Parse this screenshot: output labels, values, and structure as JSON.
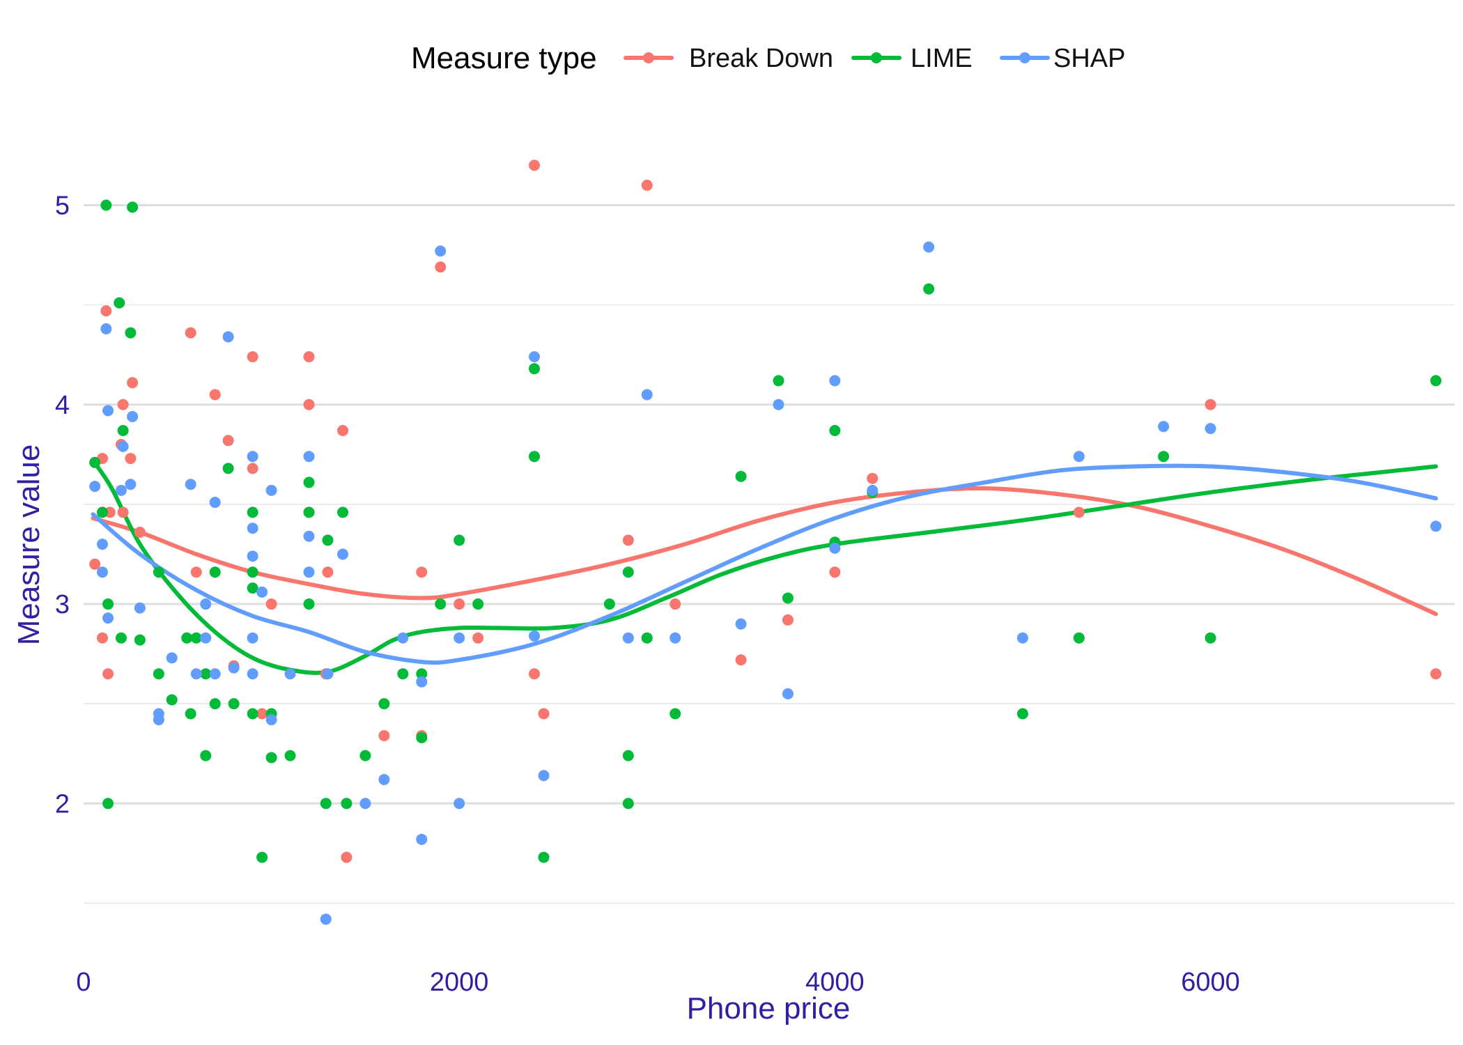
{
  "chart_data": {
    "type": "scatter",
    "title": "",
    "xlabel": "Phone price",
    "ylabel": "Measure value",
    "xlim": [
      0,
      7300
    ],
    "ylim": [
      1.25,
      5.4
    ],
    "x_ticks": [
      0,
      2000,
      4000,
      6000
    ],
    "y_ticks": [
      2,
      3,
      4,
      5
    ],
    "x_tick_labels": [
      "0",
      "2000",
      "4000",
      "6000"
    ],
    "y_tick_labels": [
      "2",
      "3",
      "4",
      "5"
    ],
    "minor_grid_y": [
      1.5,
      2.5,
      3.5,
      4.5
    ],
    "grid": true,
    "legend": {
      "title": "Measure type",
      "position": "top"
    },
    "series": [
      {
        "name": "Break Down",
        "color": "#f8766d",
        "points": [
          [
            60,
            3.2
          ],
          [
            100,
            3.73
          ],
          [
            100,
            2.83
          ],
          [
            120,
            4.47
          ],
          [
            130,
            2.65
          ],
          [
            140,
            3.46
          ],
          [
            200,
            3.8
          ],
          [
            210,
            4.0
          ],
          [
            210,
            3.46
          ],
          [
            250,
            3.73
          ],
          [
            260,
            4.11
          ],
          [
            300,
            3.36
          ],
          [
            570,
            4.36
          ],
          [
            600,
            3.16
          ],
          [
            700,
            4.05
          ],
          [
            770,
            3.82
          ],
          [
            800,
            2.69
          ],
          [
            900,
            4.24
          ],
          [
            900,
            3.68
          ],
          [
            950,
            2.45
          ],
          [
            1000,
            3.0
          ],
          [
            1200,
            4.24
          ],
          [
            1200,
            4.0
          ],
          [
            1290,
            2.65
          ],
          [
            1300,
            3.16
          ],
          [
            1380,
            3.87
          ],
          [
            1400,
            1.73
          ],
          [
            1600,
            2.34
          ],
          [
            1800,
            2.34
          ],
          [
            1800,
            3.16
          ],
          [
            1900,
            4.69
          ],
          [
            2000,
            3.0
          ],
          [
            2100,
            2.83
          ],
          [
            2400,
            5.2
          ],
          [
            2400,
            2.65
          ],
          [
            2450,
            2.45
          ],
          [
            2900,
            3.32
          ],
          [
            3000,
            5.1
          ],
          [
            3150,
            3.0
          ],
          [
            3500,
            2.72
          ],
          [
            3750,
            2.92
          ],
          [
            4000,
            3.16
          ],
          [
            4200,
            3.63
          ],
          [
            5300,
            3.46
          ],
          [
            6000,
            4.0
          ],
          [
            7200,
            2.65
          ]
        ],
        "smooth": [
          [
            50,
            3.43
          ],
          [
            300,
            3.36
          ],
          [
            600,
            3.25
          ],
          [
            900,
            3.16
          ],
          [
            1200,
            3.1
          ],
          [
            1500,
            3.05
          ],
          [
            1800,
            3.03
          ],
          [
            2000,
            3.05
          ],
          [
            2400,
            3.12
          ],
          [
            2800,
            3.2
          ],
          [
            3200,
            3.3
          ],
          [
            3600,
            3.42
          ],
          [
            4000,
            3.51
          ],
          [
            4400,
            3.56
          ],
          [
            4800,
            3.58
          ],
          [
            5200,
            3.55
          ],
          [
            5600,
            3.49
          ],
          [
            6000,
            3.39
          ],
          [
            6400,
            3.27
          ],
          [
            6800,
            3.12
          ],
          [
            7200,
            2.95
          ]
        ]
      },
      {
        "name": "LIME",
        "color": "#00ba38",
        "points": [
          [
            60,
            3.71
          ],
          [
            100,
            3.46
          ],
          [
            120,
            5.0
          ],
          [
            130,
            3.0
          ],
          [
            130,
            2.0
          ],
          [
            190,
            4.51
          ],
          [
            200,
            2.83
          ],
          [
            210,
            3.87
          ],
          [
            250,
            4.36
          ],
          [
            260,
            4.99
          ],
          [
            300,
            2.82
          ],
          [
            400,
            3.16
          ],
          [
            400,
            2.65
          ],
          [
            470,
            2.52
          ],
          [
            550,
            2.83
          ],
          [
            570,
            2.45
          ],
          [
            600,
            2.83
          ],
          [
            650,
            2.65
          ],
          [
            650,
            2.24
          ],
          [
            700,
            3.16
          ],
          [
            700,
            2.5
          ],
          [
            770,
            3.68
          ],
          [
            800,
            2.5
          ],
          [
            900,
            3.46
          ],
          [
            900,
            3.16
          ],
          [
            900,
            3.08
          ],
          [
            900,
            2.45
          ],
          [
            950,
            1.73
          ],
          [
            1000,
            2.45
          ],
          [
            1000,
            2.23
          ],
          [
            1100,
            2.24
          ],
          [
            1200,
            3.61
          ],
          [
            1200,
            3.46
          ],
          [
            1200,
            3.0
          ],
          [
            1290,
            2.0
          ],
          [
            1300,
            3.32
          ],
          [
            1380,
            3.46
          ],
          [
            1400,
            2.0
          ],
          [
            1500,
            2.24
          ],
          [
            1600,
            2.5
          ],
          [
            1700,
            2.65
          ],
          [
            1800,
            2.65
          ],
          [
            1800,
            2.33
          ],
          [
            1900,
            3.0
          ],
          [
            2000,
            3.32
          ],
          [
            2100,
            3.0
          ],
          [
            2400,
            4.18
          ],
          [
            2400,
            3.74
          ],
          [
            2450,
            1.73
          ],
          [
            2800,
            3.0
          ],
          [
            2900,
            3.16
          ],
          [
            2900,
            2.24
          ],
          [
            2900,
            2.0
          ],
          [
            3000,
            2.83
          ],
          [
            3150,
            2.45
          ],
          [
            3500,
            3.64
          ],
          [
            3700,
            4.12
          ],
          [
            3750,
            3.03
          ],
          [
            4000,
            3.87
          ],
          [
            4000,
            3.31
          ],
          [
            4200,
            3.56
          ],
          [
            4500,
            4.58
          ],
          [
            5000,
            2.45
          ],
          [
            5300,
            2.83
          ],
          [
            5750,
            3.74
          ],
          [
            6000,
            2.83
          ],
          [
            7200,
            4.12
          ]
        ],
        "smooth": [
          [
            50,
            3.72
          ],
          [
            150,
            3.58
          ],
          [
            300,
            3.3
          ],
          [
            500,
            3.05
          ],
          [
            700,
            2.86
          ],
          [
            900,
            2.73
          ],
          [
            1100,
            2.67
          ],
          [
            1300,
            2.66
          ],
          [
            1500,
            2.74
          ],
          [
            1650,
            2.82
          ],
          [
            1800,
            2.86
          ],
          [
            2000,
            2.88
          ],
          [
            2200,
            2.88
          ],
          [
            2500,
            2.88
          ],
          [
            2800,
            2.92
          ],
          [
            3100,
            3.03
          ],
          [
            3400,
            3.15
          ],
          [
            3700,
            3.24
          ],
          [
            4000,
            3.3
          ],
          [
            4500,
            3.36
          ],
          [
            5000,
            3.42
          ],
          [
            5500,
            3.49
          ],
          [
            6000,
            3.56
          ],
          [
            6500,
            3.62
          ],
          [
            7000,
            3.67
          ],
          [
            7200,
            3.69
          ]
        ]
      },
      {
        "name": "SHAP",
        "color": "#619cff",
        "points": [
          [
            60,
            3.59
          ],
          [
            100,
            3.3
          ],
          [
            100,
            3.16
          ],
          [
            120,
            4.38
          ],
          [
            130,
            3.97
          ],
          [
            130,
            2.93
          ],
          [
            200,
            3.57
          ],
          [
            210,
            3.79
          ],
          [
            250,
            3.6
          ],
          [
            260,
            3.94
          ],
          [
            300,
            2.98
          ],
          [
            400,
            2.45
          ],
          [
            400,
            2.42
          ],
          [
            470,
            2.73
          ],
          [
            570,
            3.6
          ],
          [
            600,
            2.65
          ],
          [
            650,
            3.0
          ],
          [
            650,
            2.83
          ],
          [
            700,
            3.51
          ],
          [
            700,
            2.65
          ],
          [
            770,
            4.34
          ],
          [
            800,
            2.68
          ],
          [
            900,
            3.74
          ],
          [
            900,
            3.38
          ],
          [
            900,
            3.24
          ],
          [
            900,
            2.83
          ],
          [
            900,
            2.65
          ],
          [
            950,
            3.06
          ],
          [
            1000,
            3.57
          ],
          [
            1000,
            2.42
          ],
          [
            1100,
            2.65
          ],
          [
            1200,
            3.74
          ],
          [
            1200,
            3.34
          ],
          [
            1200,
            3.16
          ],
          [
            1290,
            1.42
          ],
          [
            1300,
            2.65
          ],
          [
            1380,
            3.25
          ],
          [
            1500,
            2.0
          ],
          [
            1600,
            2.12
          ],
          [
            1700,
            2.83
          ],
          [
            1800,
            2.61
          ],
          [
            1800,
            1.82
          ],
          [
            1900,
            4.77
          ],
          [
            2000,
            2.83
          ],
          [
            2000,
            2.0
          ],
          [
            2400,
            4.24
          ],
          [
            2400,
            2.84
          ],
          [
            2450,
            2.14
          ],
          [
            2900,
            2.83
          ],
          [
            3000,
            4.05
          ],
          [
            3150,
            2.83
          ],
          [
            3500,
            2.9
          ],
          [
            3700,
            4.0
          ],
          [
            3750,
            2.55
          ],
          [
            4000,
            4.12
          ],
          [
            4000,
            3.28
          ],
          [
            4200,
            3.57
          ],
          [
            4500,
            4.79
          ],
          [
            5000,
            2.83
          ],
          [
            5300,
            3.74
          ],
          [
            5750,
            3.89
          ],
          [
            6000,
            3.88
          ],
          [
            7200,
            3.39
          ]
        ],
        "smooth": [
          [
            50,
            3.45
          ],
          [
            300,
            3.25
          ],
          [
            600,
            3.07
          ],
          [
            900,
            2.94
          ],
          [
            1200,
            2.86
          ],
          [
            1500,
            2.76
          ],
          [
            1800,
            2.71
          ],
          [
            2000,
            2.72
          ],
          [
            2400,
            2.8
          ],
          [
            2800,
            2.94
          ],
          [
            3200,
            3.11
          ],
          [
            3600,
            3.28
          ],
          [
            4000,
            3.43
          ],
          [
            4400,
            3.54
          ],
          [
            4800,
            3.61
          ],
          [
            5200,
            3.67
          ],
          [
            5600,
            3.69
          ],
          [
            6000,
            3.69
          ],
          [
            6400,
            3.66
          ],
          [
            6800,
            3.61
          ],
          [
            7200,
            3.53
          ]
        ]
      }
    ]
  }
}
